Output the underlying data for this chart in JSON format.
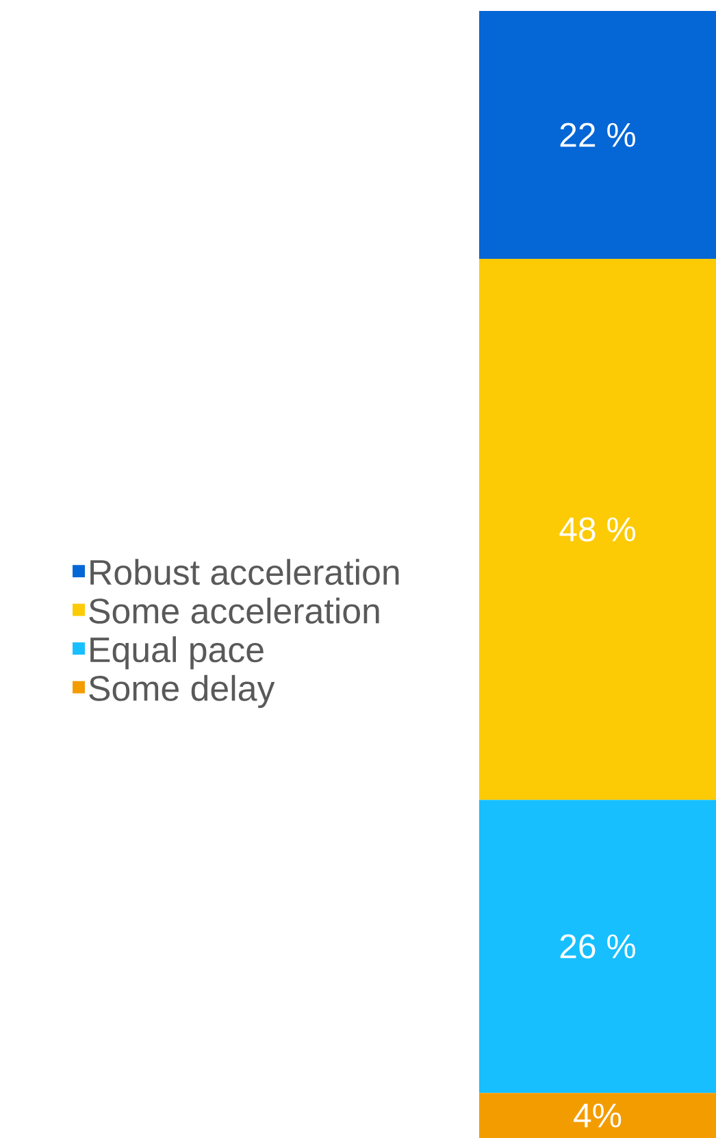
{
  "chart_data": {
    "type": "bar",
    "stacked": true,
    "legend": "left",
    "categories": [
      null
    ],
    "series": [
      {
        "name": "Some delay",
        "color": "#f39c00",
        "values": [
          4
        ],
        "value_labels": [
          "4%"
        ]
      },
      {
        "name": "Equal pace",
        "color": "#17bfff",
        "values": [
          26
        ],
        "value_labels": [
          "26 %"
        ]
      },
      {
        "name": "Some acceleration",
        "color": "#fccb06",
        "values": [
          48
        ],
        "value_labels": [
          "48 %"
        ]
      },
      {
        "name": "Robust acceleration",
        "color": "#0566d6",
        "values": [
          22
        ],
        "value_labels": [
          "22 %"
        ]
      }
    ]
  }
}
